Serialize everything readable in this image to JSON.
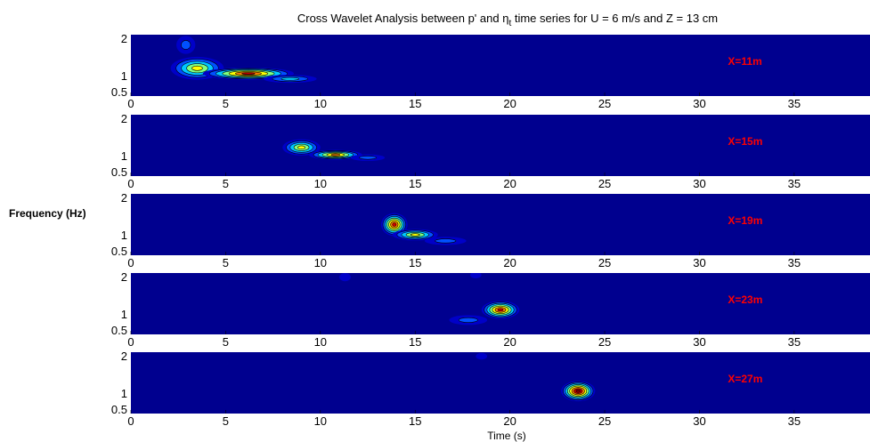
{
  "chart_data": {
    "type": "heatmap",
    "title_main": "Cross Wavelet Analysis between p' and ",
    "title_symbol": "η",
    "title_subscript": "t",
    "title_tail": " time series for U = 6 m/s and Z = 13 cm",
    "ylabel": "Frequency (Hz)",
    "xlabel": "Time (s)",
    "xlim": [
      0,
      39
    ],
    "ylim": [
      0.5,
      2
    ],
    "x_ticks": [
      "0",
      "5",
      "10",
      "15",
      "20",
      "25",
      "30",
      "35"
    ],
    "y_ticks": [
      "2",
      "1",
      "0.5"
    ],
    "colors": {
      "background": "#00008f",
      "levels": [
        "#0000c8",
        "#0050ff",
        "#00c8ff",
        "#7fff7f",
        "#ffff00",
        "#ff8000",
        "#d00000",
        "#800000"
      ],
      "annotation": "#ff0000"
    },
    "panels": [
      {
        "label": "X=11m",
        "blobs": [
          {
            "x": 3.5,
            "y": 1.18,
            "sx": 1.4,
            "sy": 0.28,
            "peak": 5
          },
          {
            "x": 6.2,
            "y": 1.05,
            "sx": 2.4,
            "sy": 0.15,
            "peak": 7
          },
          {
            "x": 8.4,
            "y": 0.92,
            "sx": 1.4,
            "sy": 0.1,
            "peak": 3
          },
          {
            "x": 2.9,
            "y": 1.75,
            "sx": 0.5,
            "sy": 0.22,
            "peak": 2
          }
        ]
      },
      {
        "label": "X=15m",
        "blobs": [
          {
            "x": 9.0,
            "y": 1.2,
            "sx": 1.0,
            "sy": 0.2,
            "peak": 5
          },
          {
            "x": 10.8,
            "y": 1.02,
            "sx": 1.4,
            "sy": 0.12,
            "peak": 6
          },
          {
            "x": 12.5,
            "y": 0.95,
            "sx": 0.9,
            "sy": 0.08,
            "peak": 2
          }
        ]
      },
      {
        "label": "X=19m",
        "blobs": [
          {
            "x": 13.9,
            "y": 1.25,
            "sx": 0.7,
            "sy": 0.28,
            "peak": 7
          },
          {
            "x": 15.0,
            "y": 1.0,
            "sx": 1.2,
            "sy": 0.14,
            "peak": 5
          },
          {
            "x": 16.6,
            "y": 0.85,
            "sx": 1.1,
            "sy": 0.1,
            "peak": 2
          }
        ]
      },
      {
        "label": "X=23m",
        "blobs": [
          {
            "x": 19.5,
            "y": 1.1,
            "sx": 1.0,
            "sy": 0.22,
            "peak": 7
          },
          {
            "x": 17.8,
            "y": 0.85,
            "sx": 1.0,
            "sy": 0.12,
            "peak": 2
          },
          {
            "x": 11.3,
            "y": 1.9,
            "sx": 0.3,
            "sy": 0.1,
            "peak": 1
          },
          {
            "x": 18.2,
            "y": 1.95,
            "sx": 0.3,
            "sy": 0.08,
            "peak": 1
          }
        ]
      },
      {
        "label": "X=27m",
        "blobs": [
          {
            "x": 23.6,
            "y": 1.05,
            "sx": 0.9,
            "sy": 0.25,
            "peak": 8
          },
          {
            "x": 18.5,
            "y": 1.9,
            "sx": 0.3,
            "sy": 0.08,
            "peak": 1
          }
        ]
      }
    ]
  }
}
